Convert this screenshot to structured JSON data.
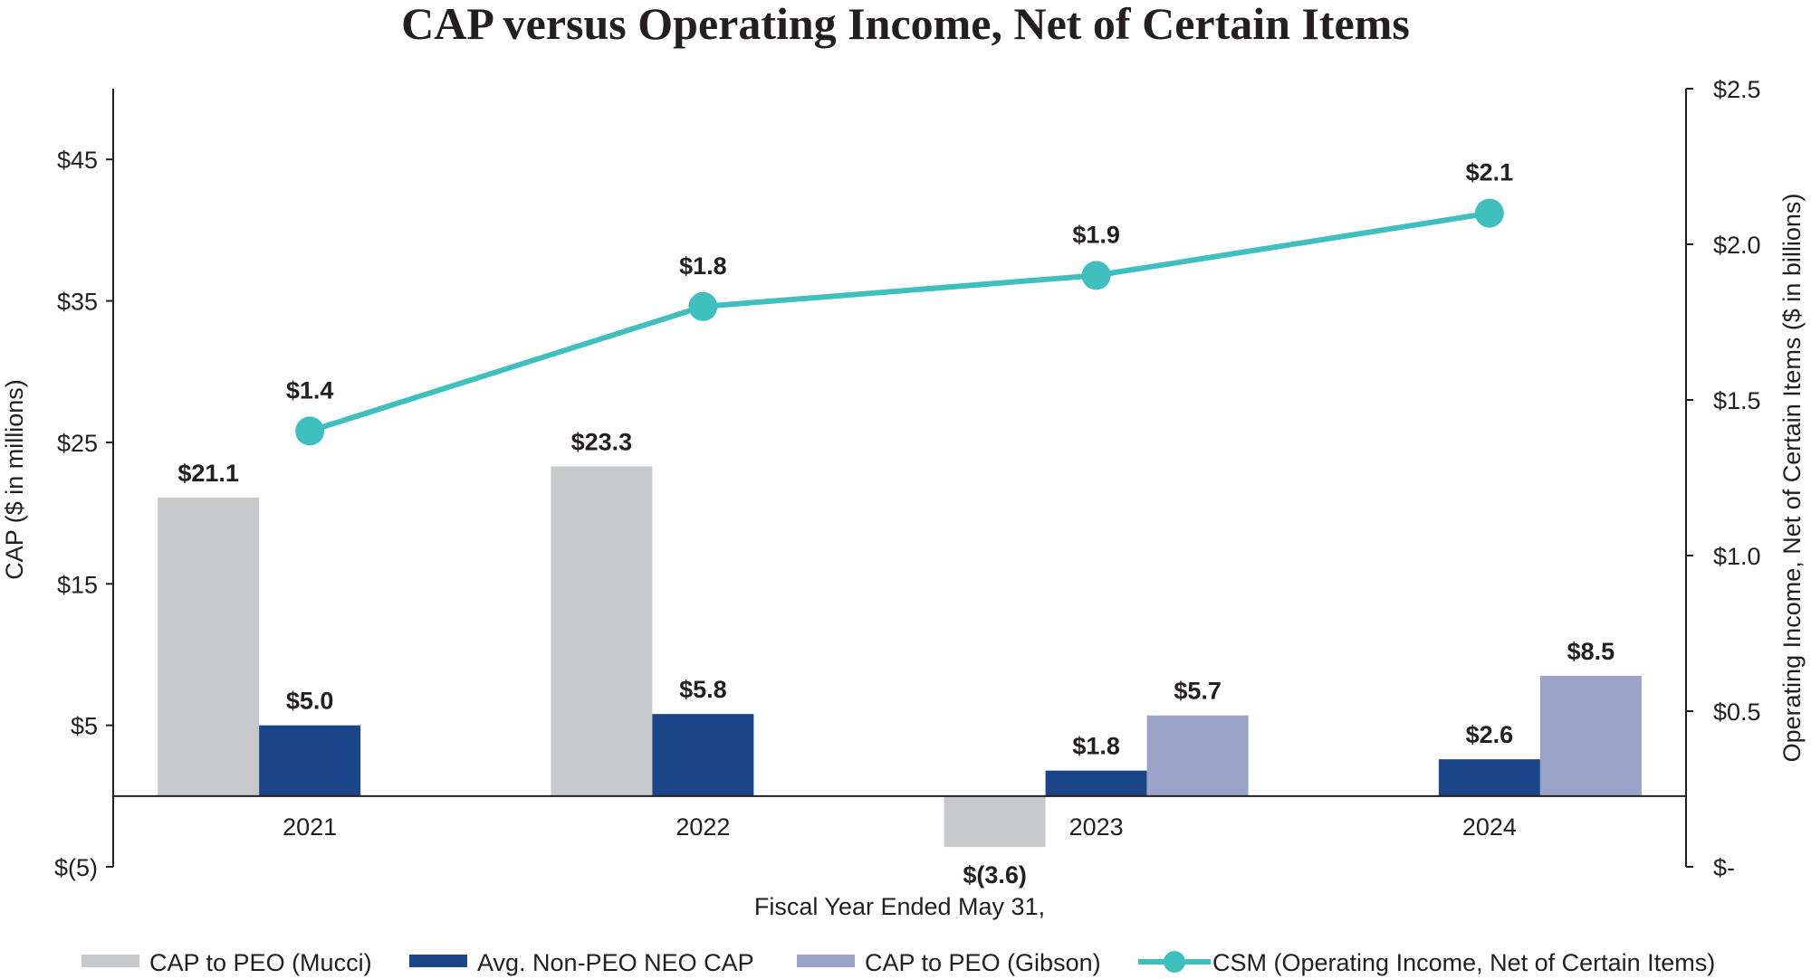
{
  "chart_data": {
    "type": "bar",
    "title": "CAP versus Operating Income, Net of Certain Items",
    "xlabel": "Fiscal Year Ended May 31,",
    "ylabel_left": "CAP ($ in millions)",
    "ylabel_right": "Operating Income, Net of Certain Items ($ in billions)",
    "categories": [
      "2021",
      "2022",
      "2023",
      "2024"
    ],
    "ylim_left": [
      -5,
      50
    ],
    "ylim_right": [
      0,
      2.5
    ],
    "left_ticks": [
      {
        "value": -5,
        "label": "$(5)"
      },
      {
        "value": 5,
        "label": "$5"
      },
      {
        "value": 15,
        "label": "$15"
      },
      {
        "value": 25,
        "label": "$25"
      },
      {
        "value": 35,
        "label": "$35"
      },
      {
        "value": 45,
        "label": "$45"
      }
    ],
    "right_ticks": [
      {
        "value": 0,
        "label": "$-"
      },
      {
        "value": 0.5,
        "label": "$0.5"
      },
      {
        "value": 1.0,
        "label": "$1.0"
      },
      {
        "value": 1.5,
        "label": "$1.5"
      },
      {
        "value": 2.0,
        "label": "$2.0"
      },
      {
        "value": 2.5,
        "label": "$2.5"
      }
    ],
    "grid": false,
    "legend_position": "bottom",
    "bar_series": [
      {
        "name": "CAP to PEO (Mucci)",
        "color": "#c8c9cb",
        "values": [
          21.1,
          23.3,
          -3.6,
          null
        ],
        "labels": [
          "$21.1",
          "$23.3",
          "$(3.6)",
          null
        ]
      },
      {
        "name": "Avg. Non-PEO NEO CAP",
        "color": "#1b4589",
        "values": [
          5.0,
          5.8,
          1.8,
          2.6
        ],
        "labels": [
          "$5.0",
          "$5.8",
          "$1.8",
          "$2.6"
        ]
      },
      {
        "name": "CAP to PEO (Gibson)",
        "color": "#9ba3c9",
        "values": [
          null,
          null,
          5.7,
          8.5
        ],
        "labels": [
          null,
          null,
          "$5.7",
          "$8.5"
        ]
      }
    ],
    "line_series": [
      {
        "name": "CSM (Operating Income, Net of Certain Items)",
        "color": "#3fbfbe",
        "axis": "right",
        "values": [
          1.4,
          1.8,
          1.9,
          2.1
        ],
        "labels": [
          "$1.4",
          "$1.8",
          "$1.9",
          "$2.1"
        ]
      }
    ]
  }
}
